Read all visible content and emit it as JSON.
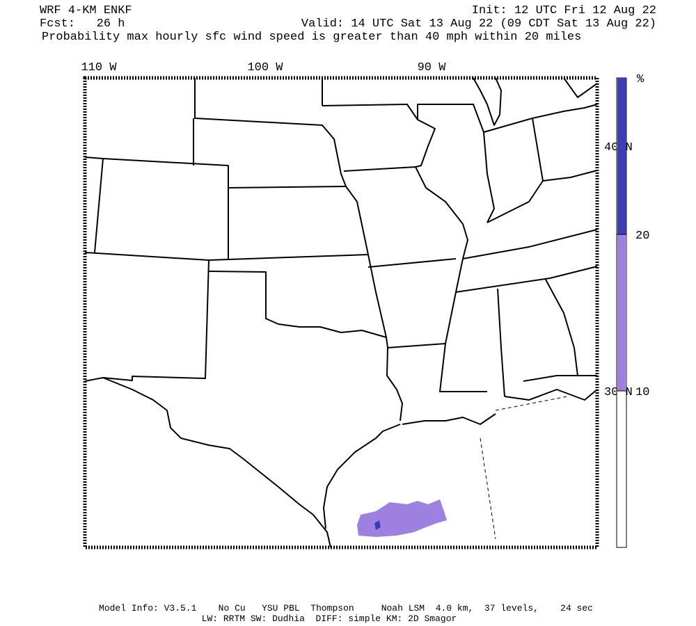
{
  "header": {
    "model": "WRF 4-KM ENKF",
    "forecast": "Fcst:   26 h",
    "init": "Init: 12 UTC Fri 12 Aug 22",
    "valid": "Valid: 14 UTC Sat 13 Aug 22 (09 CDT Sat 13 Aug 22)",
    "title": "Probability max hourly sfc wind speed is greater than 40 mph within 20 miles"
  },
  "map": {
    "longitude_labels": [
      "110 W",
      "100 W",
      "90 W"
    ],
    "latitude_labels": [
      "40 N",
      "30 N"
    ]
  },
  "colorbar": {
    "unit": "%",
    "ticks": [
      10,
      20
    ],
    "colors": [
      "#9e80e0",
      "#3a3eb2"
    ]
  },
  "footer": {
    "line1": "Model Info: V3.5.1    No Cu   YSU PBL  Thompson     Noah LSM  4.0 km,  37 levels,    24 sec",
    "line2": "LW: RRTM SW: Dudhia  DIFF: simple KM: 2D Smagor"
  }
}
